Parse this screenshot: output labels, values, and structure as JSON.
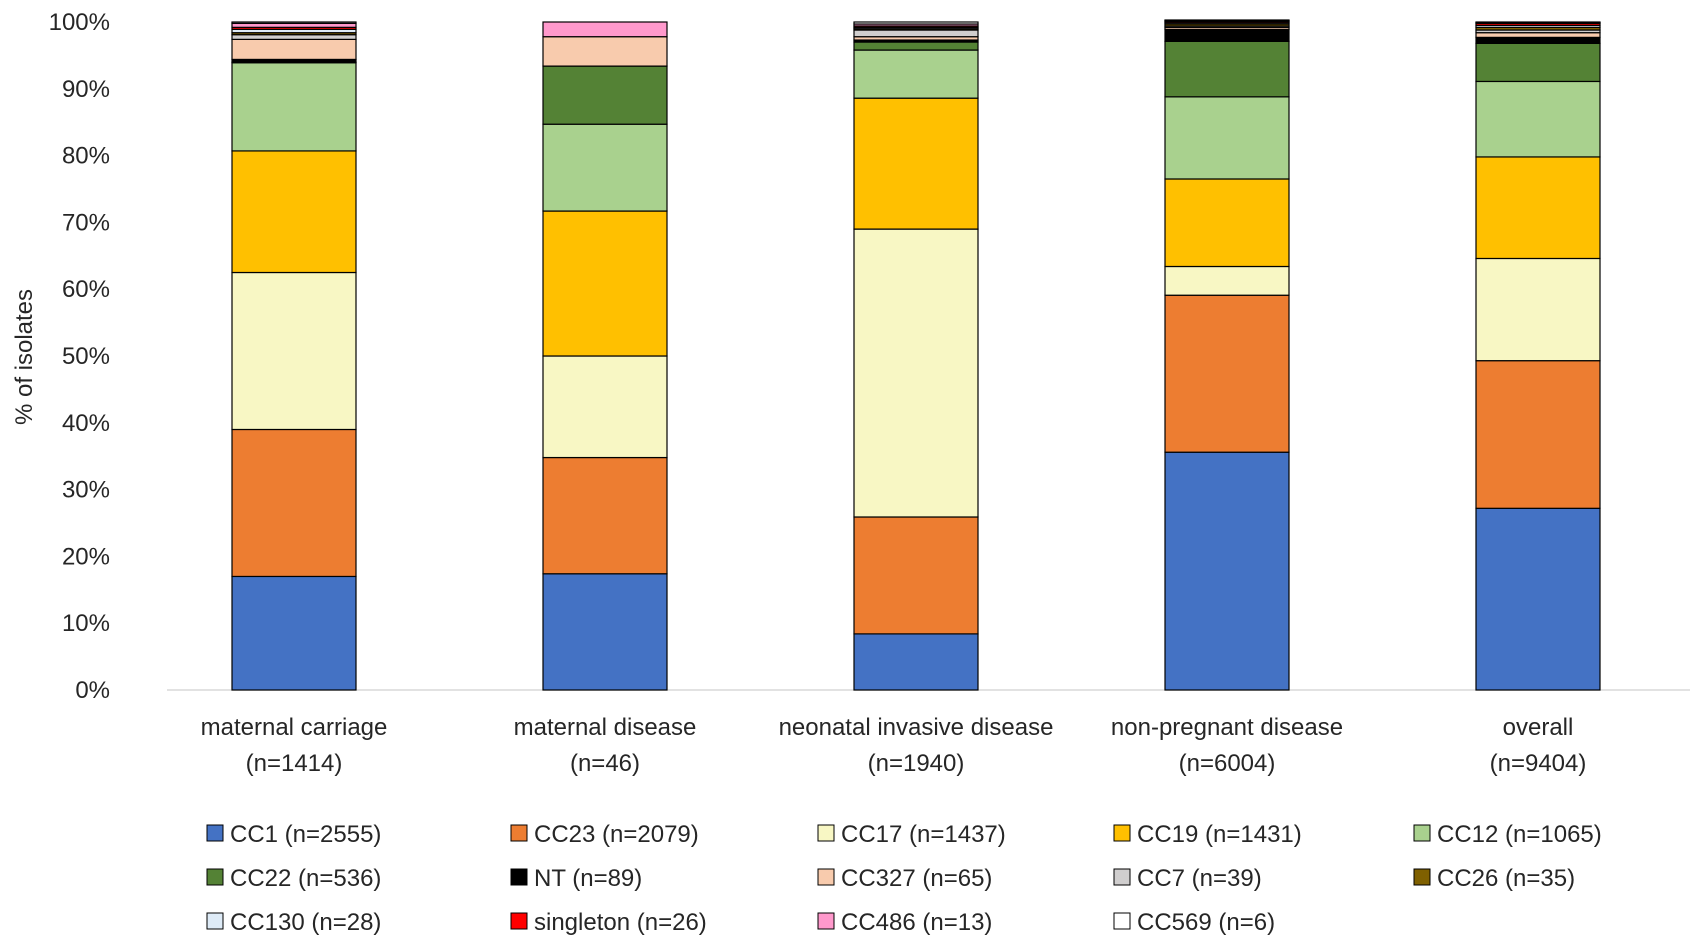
{
  "chart_data": {
    "type": "bar",
    "stacked": true,
    "title": "",
    "xlabel": "",
    "ylabel": "% of isolates",
    "ylim": [
      0,
      100
    ],
    "y_ticks": [
      "0%",
      "10%",
      "20%",
      "30%",
      "40%",
      "50%",
      "60%",
      "70%",
      "80%",
      "90%",
      "100%"
    ],
    "grid": false,
    "legend_position": "bottom",
    "categories": [
      [
        "maternal carriage",
        "(n=1414)"
      ],
      [
        "maternal disease",
        "(n=46)"
      ],
      [
        "neonatal invasive disease",
        "(n=1940)"
      ],
      [
        "non-pregnant disease",
        "(n=6004)"
      ],
      [
        "overall",
        "(n=9404)"
      ]
    ],
    "series": [
      {
        "name": "CC1 (n=2555)",
        "color": "#4472C4",
        "values": [
          17.0,
          17.4,
          8.4,
          35.6,
          27.2
        ]
      },
      {
        "name": "CC23 (n=2079)",
        "color": "#ED7D31",
        "values": [
          22.0,
          17.4,
          17.5,
          23.5,
          22.1
        ]
      },
      {
        "name": "CC17 (n=1437)",
        "color": "#F8F7C4",
        "values": [
          23.5,
          15.2,
          43.1,
          4.3,
          15.3
        ]
      },
      {
        "name": "CC19 (n=1431)",
        "color": "#FFC000",
        "values": [
          18.2,
          21.7,
          19.6,
          13.1,
          15.2
        ]
      },
      {
        "name": "CC12 (n=1065)",
        "color": "#A9D18E",
        "values": [
          13.2,
          13.0,
          7.2,
          12.3,
          11.3
        ]
      },
      {
        "name": "CC22 (n=536)",
        "color": "#548235",
        "values": [
          0.1,
          8.7,
          1.2,
          8.3,
          5.7
        ]
      },
      {
        "name": "NT (n=89)",
        "color": "#000000",
        "values": [
          0.4,
          0.0,
          0.3,
          1.8,
          0.9
        ]
      },
      {
        "name": "CC327 (n=65)",
        "color": "#F8CBAD",
        "values": [
          3.0,
          4.4,
          0.5,
          0.3,
          0.7
        ]
      },
      {
        "name": "CC7 (n=39)",
        "color": "#D0CECE",
        "values": [
          0.7,
          0.0,
          1.0,
          0.2,
          0.4
        ]
      },
      {
        "name": "CC26 (n=35)",
        "color": "#7F6000",
        "values": [
          0.3,
          0.0,
          0.2,
          0.3,
          0.4
        ]
      },
      {
        "name": "CC130 (n=28)",
        "color": "#DEEBF7",
        "values": [
          0.5,
          0.0,
          0.2,
          0.2,
          0.3
        ]
      },
      {
        "name": "singleton (n=26)",
        "color": "#FF0000",
        "values": [
          0.3,
          0.0,
          0.2,
          0.2,
          0.3
        ]
      },
      {
        "name": "CC486 (n=13)",
        "color": "#FF99CC",
        "values": [
          0.6,
          2.2,
          0.3,
          0.1,
          0.1
        ]
      },
      {
        "name": "CC569 (n=6)",
        "color": "#FFFFFF",
        "values": [
          0.2,
          0.0,
          0.3,
          0.1,
          0.1
        ]
      }
    ]
  }
}
